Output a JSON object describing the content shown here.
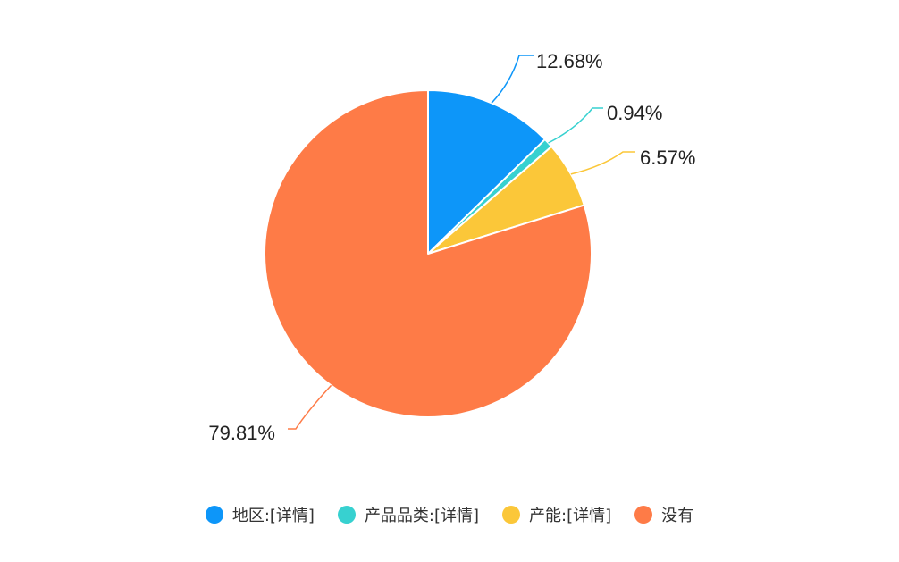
{
  "chart_data": {
    "type": "pie",
    "slices": [
      {
        "name": "地区:[详情]",
        "value": 12.68,
        "label": "12.68%",
        "color": "#0d96f9"
      },
      {
        "name": "产品品类:[详情]",
        "value": 0.94,
        "label": "0.94%",
        "color": "#37d1d0"
      },
      {
        "name": "产能:[详情]",
        "value": 6.57,
        "label": "6.57%",
        "color": "#fbc739"
      },
      {
        "name": "没有",
        "value": 79.81,
        "label": "79.81%",
        "color": "#fe7b47"
      }
    ],
    "legend_position": "bottom"
  }
}
